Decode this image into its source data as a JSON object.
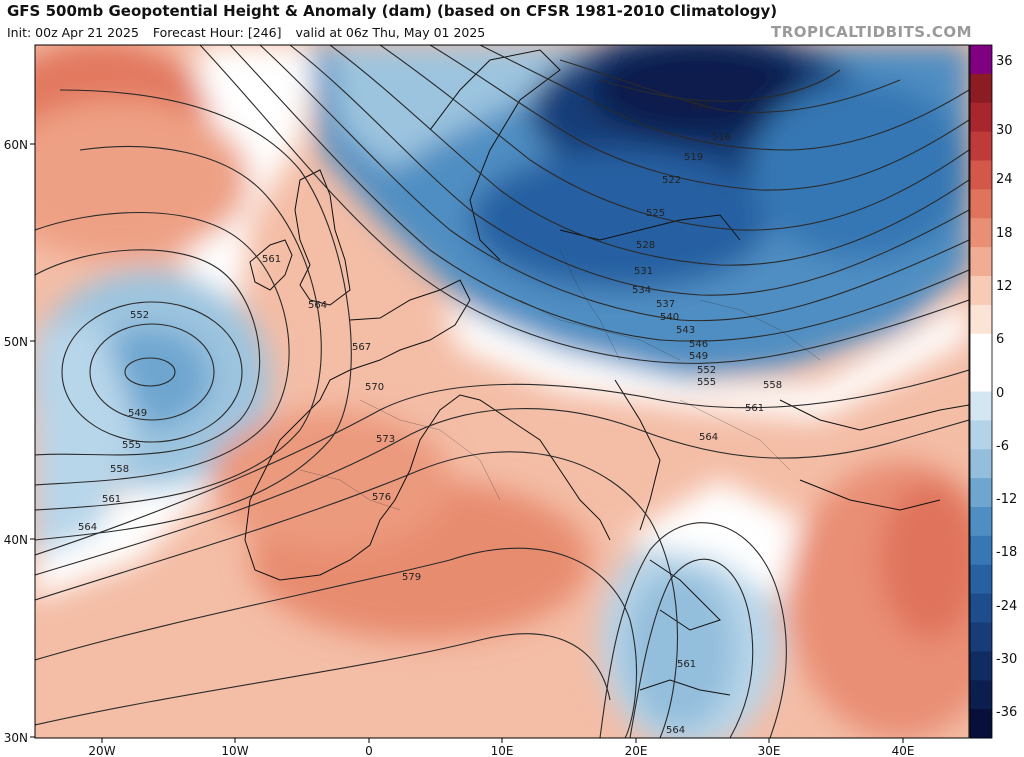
{
  "header": {
    "title": "GFS 500mb Geopotential Height & Anomaly (dam) (based on CFSR 1981-2010 Climatology)",
    "init": "Init: 00z Apr 21 2025",
    "forecast_hour": "Forecast Hour: [246]",
    "valid": "valid at 06z Thu, May 01 2025",
    "credit": "TROPICALTIDBITS.COM"
  },
  "axes": {
    "lat_labels": [
      "60N",
      "50N",
      "40N",
      "30N"
    ],
    "lon_labels": [
      "20W",
      "10W",
      "0",
      "10E",
      "20E",
      "30E",
      "40E"
    ]
  },
  "colorbar": {
    "labels": [
      "36",
      "30",
      "24",
      "18",
      "12",
      "6",
      "0",
      "-6",
      "-12",
      "-18",
      "-24",
      "-30",
      "-36"
    ],
    "colors": [
      "#7f0080",
      "#8c1c24",
      "#a8262e",
      "#c13a3a",
      "#d4584a",
      "#e0735c",
      "#e98f76",
      "#f1ad94",
      "#f7cbb5",
      "#fbe3d6",
      "#ffffff",
      "#ffffff",
      "#d4e6f1",
      "#b5d3e8",
      "#93bedc",
      "#6ea6d0",
      "#4f8ec2",
      "#3677b4",
      "#2761a2",
      "#1e4d8e",
      "#173c78",
      "#102c62",
      "#0b1e4e",
      "#080f3a"
    ]
  },
  "contours": {
    "labels": [
      "561",
      "564",
      "567",
      "570",
      "573",
      "576",
      "579",
      "552",
      "549",
      "555",
      "558",
      "561",
      "564",
      "510",
      "516",
      "519",
      "522",
      "525",
      "528",
      "531",
      "534",
      "537",
      "540",
      "543",
      "546",
      "549",
      "552",
      "555",
      "558",
      "561",
      "564",
      "561",
      "564"
    ]
  }
}
